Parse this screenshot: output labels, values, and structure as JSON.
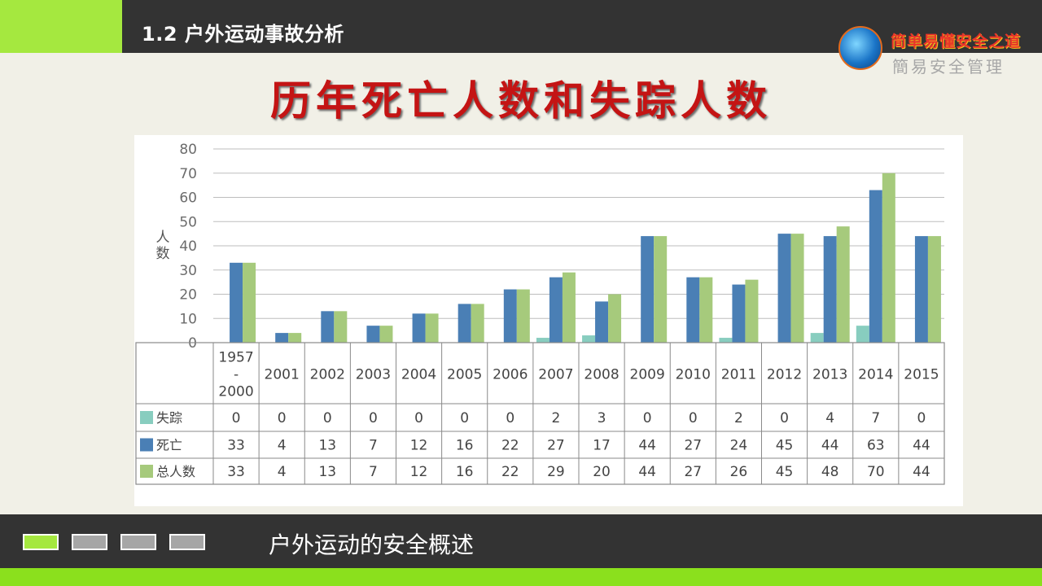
{
  "header": {
    "section_title": "1.2  户外运动事故分析"
  },
  "logo": {
    "line1": "简单易懂安全之道",
    "line2": "簡易安全管理"
  },
  "slide": {
    "title": "历年死亡人数和失踪人数"
  },
  "footer": {
    "subtitle": "户外运动的安全概述",
    "pager": [
      {
        "active": true
      },
      {
        "active": false
      },
      {
        "active": false
      },
      {
        "active": false
      }
    ]
  },
  "colors": {
    "accent_green": "#a5e83f",
    "missing": "#88cdbf",
    "deaths": "#4a7fb5",
    "total": "#a6ca7c"
  },
  "chart_data": {
    "type": "bar",
    "categories": [
      "1957\n-\n2000",
      "2001",
      "2002",
      "2003",
      "2004",
      "2005",
      "2006",
      "2007",
      "2008",
      "2009",
      "2010",
      "2011",
      "2012",
      "2013",
      "2014",
      "2015"
    ],
    "series": [
      {
        "name": "失踪",
        "values": [
          0,
          0,
          0,
          0,
          0,
          0,
          0,
          2,
          3,
          0,
          0,
          2,
          0,
          4,
          7,
          0
        ]
      },
      {
        "name": "死亡",
        "values": [
          33,
          4,
          13,
          7,
          12,
          16,
          22,
          27,
          17,
          44,
          27,
          24,
          45,
          44,
          63,
          44
        ]
      },
      {
        "name": "总人数",
        "values": [
          33,
          4,
          13,
          7,
          12,
          16,
          22,
          29,
          20,
          44,
          27,
          26,
          45,
          48,
          70,
          44
        ]
      }
    ],
    "ylabel": "人数",
    "ylim": [
      0,
      80
    ],
    "yticks": [
      0,
      10,
      20,
      30,
      40,
      50,
      60,
      70,
      80
    ],
    "grid": true,
    "legend": "data-table"
  }
}
